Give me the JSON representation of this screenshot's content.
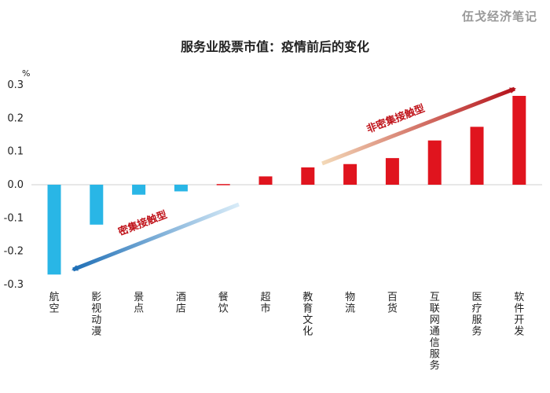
{
  "watermark": "伍戈经济笔记",
  "chart_data": {
    "type": "bar",
    "title": "服务业股票市值：疫情前后的变化",
    "unit": "%",
    "categories": [
      "航空",
      "影视动漫",
      "景点",
      "酒店",
      "餐饮",
      "超市",
      "教育文化",
      "物流",
      "百货",
      "互联网通信服务",
      "医疗服务",
      "软件开发"
    ],
    "values": [
      -0.27,
      -0.12,
      -0.03,
      -0.02,
      0.002,
      0.025,
      0.052,
      0.062,
      0.08,
      0.133,
      0.174,
      0.267
    ],
    "ylim": [
      -0.3,
      0.3
    ],
    "yticks": [
      "-0.3",
      "-0.2",
      "-0.1",
      "0.0",
      "0.1",
      "0.2",
      "0.3"
    ],
    "grid": false,
    "colors": {
      "negative": "#29b6e6",
      "positive": "#e0141e"
    },
    "annotations": {
      "dense": "密集接触型",
      "non_dense": "非密集接触型"
    }
  }
}
